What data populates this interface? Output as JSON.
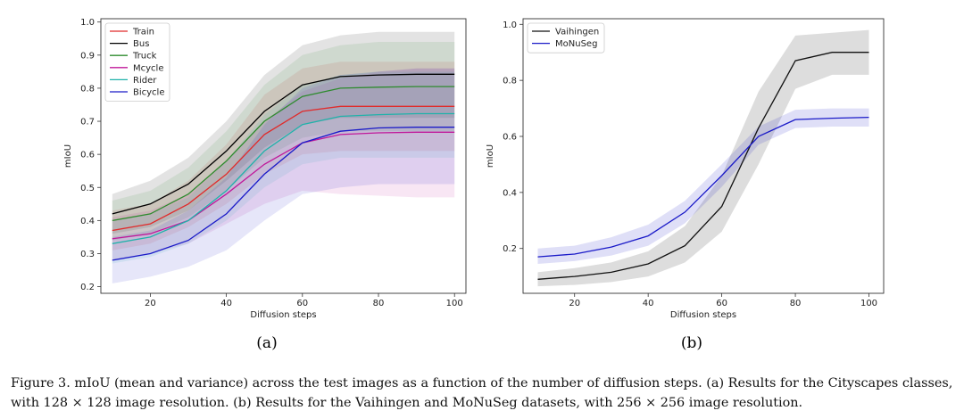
{
  "figure": {
    "subfigure_labels": [
      "(a)",
      "(b)"
    ],
    "caption": "Figure 3. mIoU (mean and variance) across the test images as a function of the number of diffusion steps. (a) Results for the Cityscapes classes, with 128 × 128 image resolution. (b) Results for the Vaihingen and MoNuSeg datasets, with 256 × 256 image resolution."
  },
  "chart_data": [
    {
      "type": "line",
      "title": "",
      "xlabel": "Diffusion steps",
      "ylabel": "mIoU",
      "x": [
        10,
        20,
        30,
        40,
        50,
        60,
        70,
        80,
        90,
        100
      ],
      "xlim": [
        7,
        103
      ],
      "ylim": [
        0.18,
        1.01
      ],
      "xticks": [
        20,
        40,
        60,
        80,
        100
      ],
      "yticks": [
        0.2,
        0.3,
        0.4,
        0.5,
        0.6,
        0.7,
        0.8,
        0.9,
        1.0
      ],
      "legend_position": "top-left",
      "grid": false,
      "series": [
        {
          "name": "Train",
          "color": "#e02b2b",
          "values": [
            0.37,
            0.39,
            0.45,
            0.54,
            0.66,
            0.73,
            0.745,
            0.745,
            0.745,
            0.745
          ],
          "lower": [
            0.31,
            0.33,
            0.38,
            0.45,
            0.54,
            0.6,
            0.61,
            0.61,
            0.61,
            0.61
          ],
          "upper": [
            0.43,
            0.45,
            0.52,
            0.63,
            0.78,
            0.86,
            0.88,
            0.88,
            0.88,
            0.88
          ]
        },
        {
          "name": "Bus",
          "color": "#000000",
          "values": [
            0.42,
            0.45,
            0.51,
            0.61,
            0.73,
            0.81,
            0.835,
            0.84,
            0.842,
            0.842
          ],
          "lower": [
            0.36,
            0.38,
            0.43,
            0.52,
            0.62,
            0.69,
            0.71,
            0.71,
            0.71,
            0.71
          ],
          "upper": [
            0.48,
            0.52,
            0.59,
            0.7,
            0.84,
            0.93,
            0.96,
            0.97,
            0.97,
            0.97
          ]
        },
        {
          "name": "Truck",
          "color": "#2e8b2e",
          "values": [
            0.4,
            0.42,
            0.48,
            0.58,
            0.7,
            0.775,
            0.8,
            0.803,
            0.805,
            0.805
          ],
          "lower": [
            0.34,
            0.36,
            0.41,
            0.49,
            0.59,
            0.65,
            0.67,
            0.67,
            0.67,
            0.67
          ],
          "upper": [
            0.46,
            0.49,
            0.56,
            0.67,
            0.81,
            0.9,
            0.93,
            0.94,
            0.94,
            0.94
          ]
        },
        {
          "name": "Mcycle",
          "color": "#c0189a",
          "values": [
            0.345,
            0.36,
            0.4,
            0.48,
            0.57,
            0.635,
            0.66,
            0.665,
            0.667,
            0.667
          ],
          "lower": [
            0.28,
            0.3,
            0.33,
            0.39,
            0.45,
            0.49,
            0.48,
            0.475,
            0.47,
            0.47
          ],
          "upper": [
            0.41,
            0.43,
            0.48,
            0.58,
            0.7,
            0.79,
            0.83,
            0.85,
            0.86,
            0.86
          ]
        },
        {
          "name": "Rider",
          "color": "#20b2aa",
          "values": [
            0.33,
            0.35,
            0.4,
            0.49,
            0.61,
            0.69,
            0.715,
            0.72,
            0.723,
            0.723
          ],
          "lower": [
            0.27,
            0.29,
            0.33,
            0.4,
            0.5,
            0.57,
            0.59,
            0.59,
            0.59,
            0.59
          ],
          "upper": [
            0.4,
            0.42,
            0.47,
            0.58,
            0.72,
            0.81,
            0.84,
            0.85,
            0.85,
            0.85
          ]
        },
        {
          "name": "Bicycle",
          "color": "#1a1ac8",
          "values": [
            0.28,
            0.3,
            0.34,
            0.42,
            0.54,
            0.635,
            0.67,
            0.68,
            0.682,
            0.682
          ],
          "lower": [
            0.21,
            0.23,
            0.26,
            0.31,
            0.4,
            0.48,
            0.5,
            0.51,
            0.51,
            0.51
          ],
          "upper": [
            0.35,
            0.37,
            0.43,
            0.53,
            0.69,
            0.8,
            0.84,
            0.85,
            0.86,
            0.86
          ]
        }
      ]
    },
    {
      "type": "line",
      "title": "",
      "xlabel": "Diffusion steps",
      "ylabel": "mIoU",
      "x": [
        10,
        20,
        30,
        40,
        50,
        60,
        70,
        80,
        90,
        100
      ],
      "xlim": [
        6,
        104
      ],
      "ylim": [
        0.04,
        1.02
      ],
      "xticks": [
        20,
        40,
        60,
        80,
        100
      ],
      "yticks": [
        0.2,
        0.4,
        0.6,
        0.8,
        1.0
      ],
      "legend_position": "top-left",
      "grid": false,
      "series": [
        {
          "name": "Vaihingen",
          "color": "#111111",
          "values": [
            0.09,
            0.1,
            0.115,
            0.145,
            0.21,
            0.35,
            0.63,
            0.87,
            0.9,
            0.9
          ],
          "lower": [
            0.065,
            0.07,
            0.08,
            0.1,
            0.15,
            0.26,
            0.5,
            0.77,
            0.82,
            0.82
          ],
          "upper": [
            0.115,
            0.13,
            0.15,
            0.19,
            0.28,
            0.46,
            0.76,
            0.96,
            0.97,
            0.98
          ]
        },
        {
          "name": "MoNuSeg",
          "color": "#1a1ac8",
          "values": [
            0.17,
            0.18,
            0.205,
            0.245,
            0.33,
            0.46,
            0.6,
            0.66,
            0.665,
            0.668
          ],
          "lower": [
            0.145,
            0.155,
            0.175,
            0.21,
            0.29,
            0.42,
            0.57,
            0.63,
            0.635,
            0.635
          ],
          "upper": [
            0.2,
            0.21,
            0.24,
            0.285,
            0.37,
            0.5,
            0.635,
            0.695,
            0.7,
            0.7
          ]
        }
      ]
    }
  ]
}
